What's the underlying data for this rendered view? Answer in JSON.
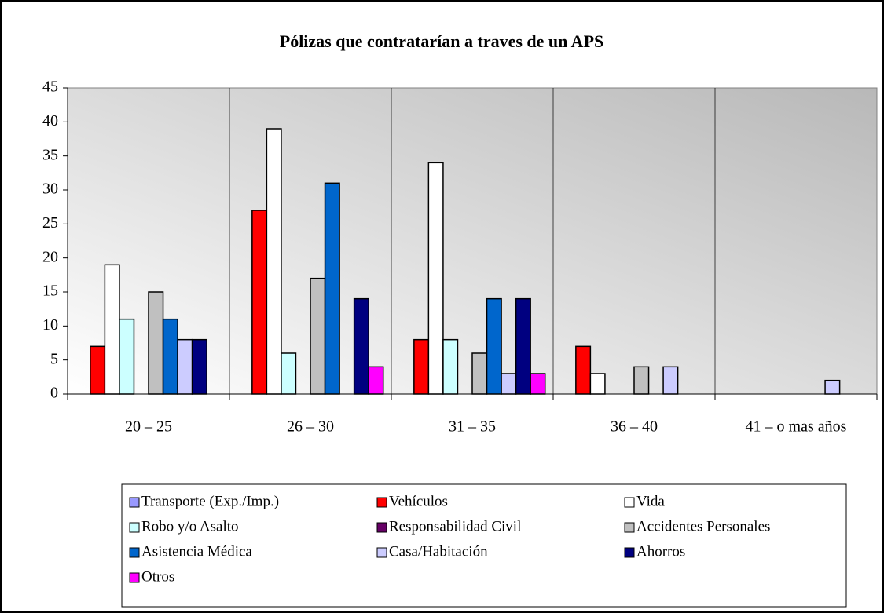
{
  "chart_data": {
    "type": "bar",
    "title": "Pólizas que contratarían a traves de un APS",
    "categories": [
      "20 – 25",
      "26 – 30",
      "31 – 35",
      "36 – 40",
      "41 – o mas años"
    ],
    "series": [
      {
        "name": "Transporte (Exp./Imp.)",
        "color": "#9999ff",
        "values": [
          0,
          0,
          0,
          0,
          0
        ]
      },
      {
        "name": "Vehículos",
        "color": "#ff0000",
        "values": [
          7,
          27,
          8,
          7,
          0
        ]
      },
      {
        "name": "Vida",
        "color": "#ffffff",
        "values": [
          19,
          39,
          34,
          3,
          0
        ]
      },
      {
        "name": "Robo y/o Asalto",
        "color": "#ccffff",
        "values": [
          11,
          6,
          8,
          0,
          0
        ]
      },
      {
        "name": "Responsabilidad Civil",
        "color": "#660066",
        "values": [
          0,
          0,
          0,
          0,
          0
        ]
      },
      {
        "name": "Accidentes Personales",
        "color": "#c0c0c0",
        "values": [
          15,
          17,
          6,
          4,
          0
        ]
      },
      {
        "name": "Asistencia Médica",
        "color": "#0066cc",
        "values": [
          11,
          31,
          14,
          0,
          0
        ]
      },
      {
        "name": "Casa/Habitación",
        "color": "#ccccff",
        "values": [
          8,
          0,
          3,
          4,
          2
        ]
      },
      {
        "name": "Ahorros",
        "color": "#000080",
        "values": [
          8,
          14,
          14,
          0,
          0
        ]
      },
      {
        "name": "Otros",
        "color": "#ff00ff",
        "values": [
          0,
          4,
          3,
          0,
          0
        ]
      }
    ],
    "ylim": [
      0,
      45
    ],
    "yticks": [
      0,
      5,
      10,
      15,
      20,
      25,
      30,
      35,
      40,
      45
    ],
    "grid": false
  }
}
